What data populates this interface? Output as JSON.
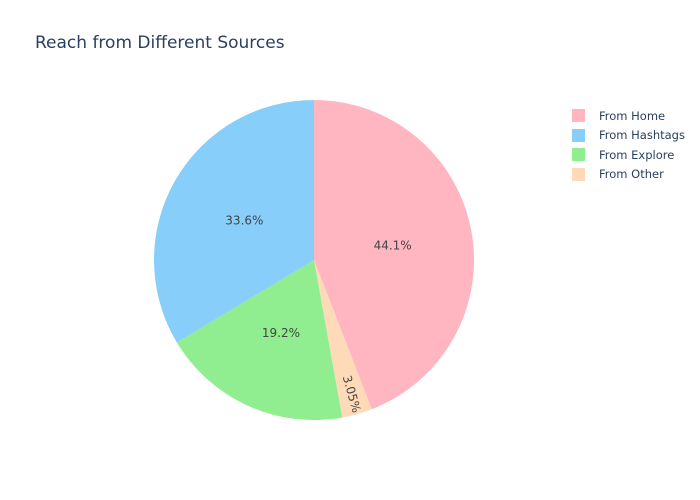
{
  "chart_data": {
    "type": "pie",
    "title": "Reach from Different Sources",
    "slices": [
      {
        "label": "From Home",
        "value": 44.1,
        "percent_label": "44.1%",
        "color": "#FFB6C1"
      },
      {
        "label": "From Other",
        "value": 3.05,
        "percent_label": "3.05%",
        "color": "#FFDAB9"
      },
      {
        "label": "From Explore",
        "value": 19.2,
        "percent_label": "19.2%",
        "color": "#90EE90"
      },
      {
        "label": "From Hashtags",
        "value": 33.6,
        "percent_label": "33.6%",
        "color": "#87CEFA"
      }
    ],
    "legend": {
      "placement": "top-right",
      "order": [
        "From Home",
        "From Hashtags",
        "From Explore",
        "From Other"
      ]
    },
    "direction": "clockwise",
    "start": "top"
  }
}
